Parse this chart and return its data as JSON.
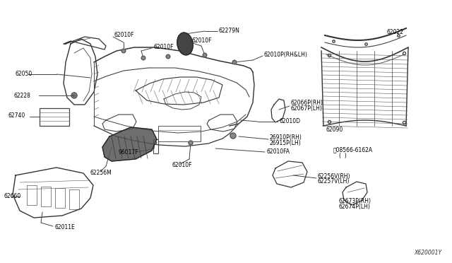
{
  "bg_color": "#ffffff",
  "diagram_id": "X620001Y",
  "lc": "#444444",
  "tc": "#000000",
  "fs": 5.5,
  "parts_labels": {
    "62010F_1": [
      162,
      47,
      "62010F"
    ],
    "62010F_2": [
      183,
      88,
      "62010F"
    ],
    "62010F_3": [
      243,
      71,
      "62010F"
    ],
    "62279N": [
      298,
      48,
      "62279N"
    ],
    "62010P": [
      370,
      78,
      "62010P(RH&LH)"
    ],
    "62050": [
      22,
      103,
      "62050"
    ],
    "62228": [
      20,
      135,
      "62228"
    ],
    "62740": [
      12,
      162,
      "62740"
    ],
    "96017F": [
      167,
      215,
      "96017F"
    ],
    "62256M": [
      138,
      243,
      "62256M"
    ],
    "62660": [
      5,
      278,
      "62660"
    ],
    "62011E": [
      88,
      322,
      "62011E"
    ],
    "62010F_bot": [
      252,
      232,
      "62010F"
    ],
    "62066P": [
      409,
      148,
      "62066P(RH)\n62067P(LH)"
    ],
    "62010D": [
      395,
      173,
      "62010D"
    ],
    "26910P": [
      385,
      197,
      "26910P(RH)\n26915P(LH)"
    ],
    "62010FA": [
      380,
      215,
      "62010FA"
    ],
    "62256V": [
      453,
      253,
      "62256V(RH)\n62257V(LH)"
    ],
    "62022": [
      548,
      47,
      "62022"
    ],
    "62090": [
      465,
      183,
      "62090"
    ],
    "08566": [
      473,
      215,
      "Ⓝ08566-6162A\n(  )"
    ],
    "62673P": [
      478,
      285,
      "62673P(RH)\n62674P(LH)"
    ]
  }
}
